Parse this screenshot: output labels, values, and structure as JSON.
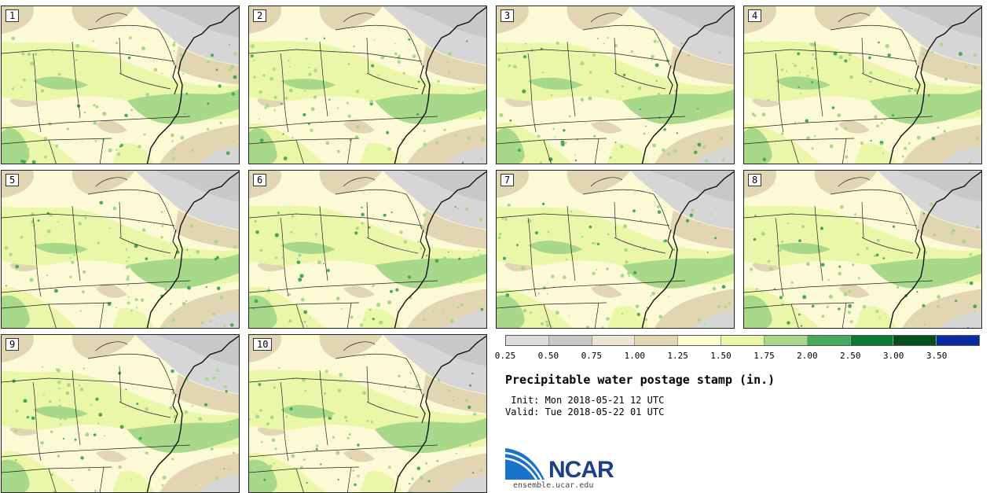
{
  "panels": [
    {
      "label": "1"
    },
    {
      "label": "2"
    },
    {
      "label": "3"
    },
    {
      "label": "4"
    },
    {
      "label": "5"
    },
    {
      "label": "6"
    },
    {
      "label": "7"
    },
    {
      "label": "8"
    },
    {
      "label": "9"
    },
    {
      "label": "10"
    }
  ],
  "colorbar": {
    "colors": [
      "#dcdcdc",
      "#c8c8c8",
      "#ece7d4",
      "#e2d6b2",
      "#ffffd2",
      "#eaf7a8",
      "#a8d98a",
      "#48a85c",
      "#0d7a34",
      "#064f20",
      "#0a2aa2"
    ],
    "ticks": [
      "0.25",
      "0.50",
      "0.75",
      "1.00",
      "1.25",
      "1.50",
      "1.75",
      "2.00",
      "2.50",
      "3.00",
      "3.50"
    ]
  },
  "title": "Precipitable water postage stamp (in.)",
  "init_text": " Init: Mon 2018-05-21 12 UTC",
  "valid_text": "Valid: Tue 2018-05-22 01 UTC",
  "logo": {
    "name": "NCAR",
    "url": "ensemble.ucar.edu"
  },
  "icons": {
    "logo": "ncar-logo-icon",
    "map": "precipitable-water-map"
  }
}
